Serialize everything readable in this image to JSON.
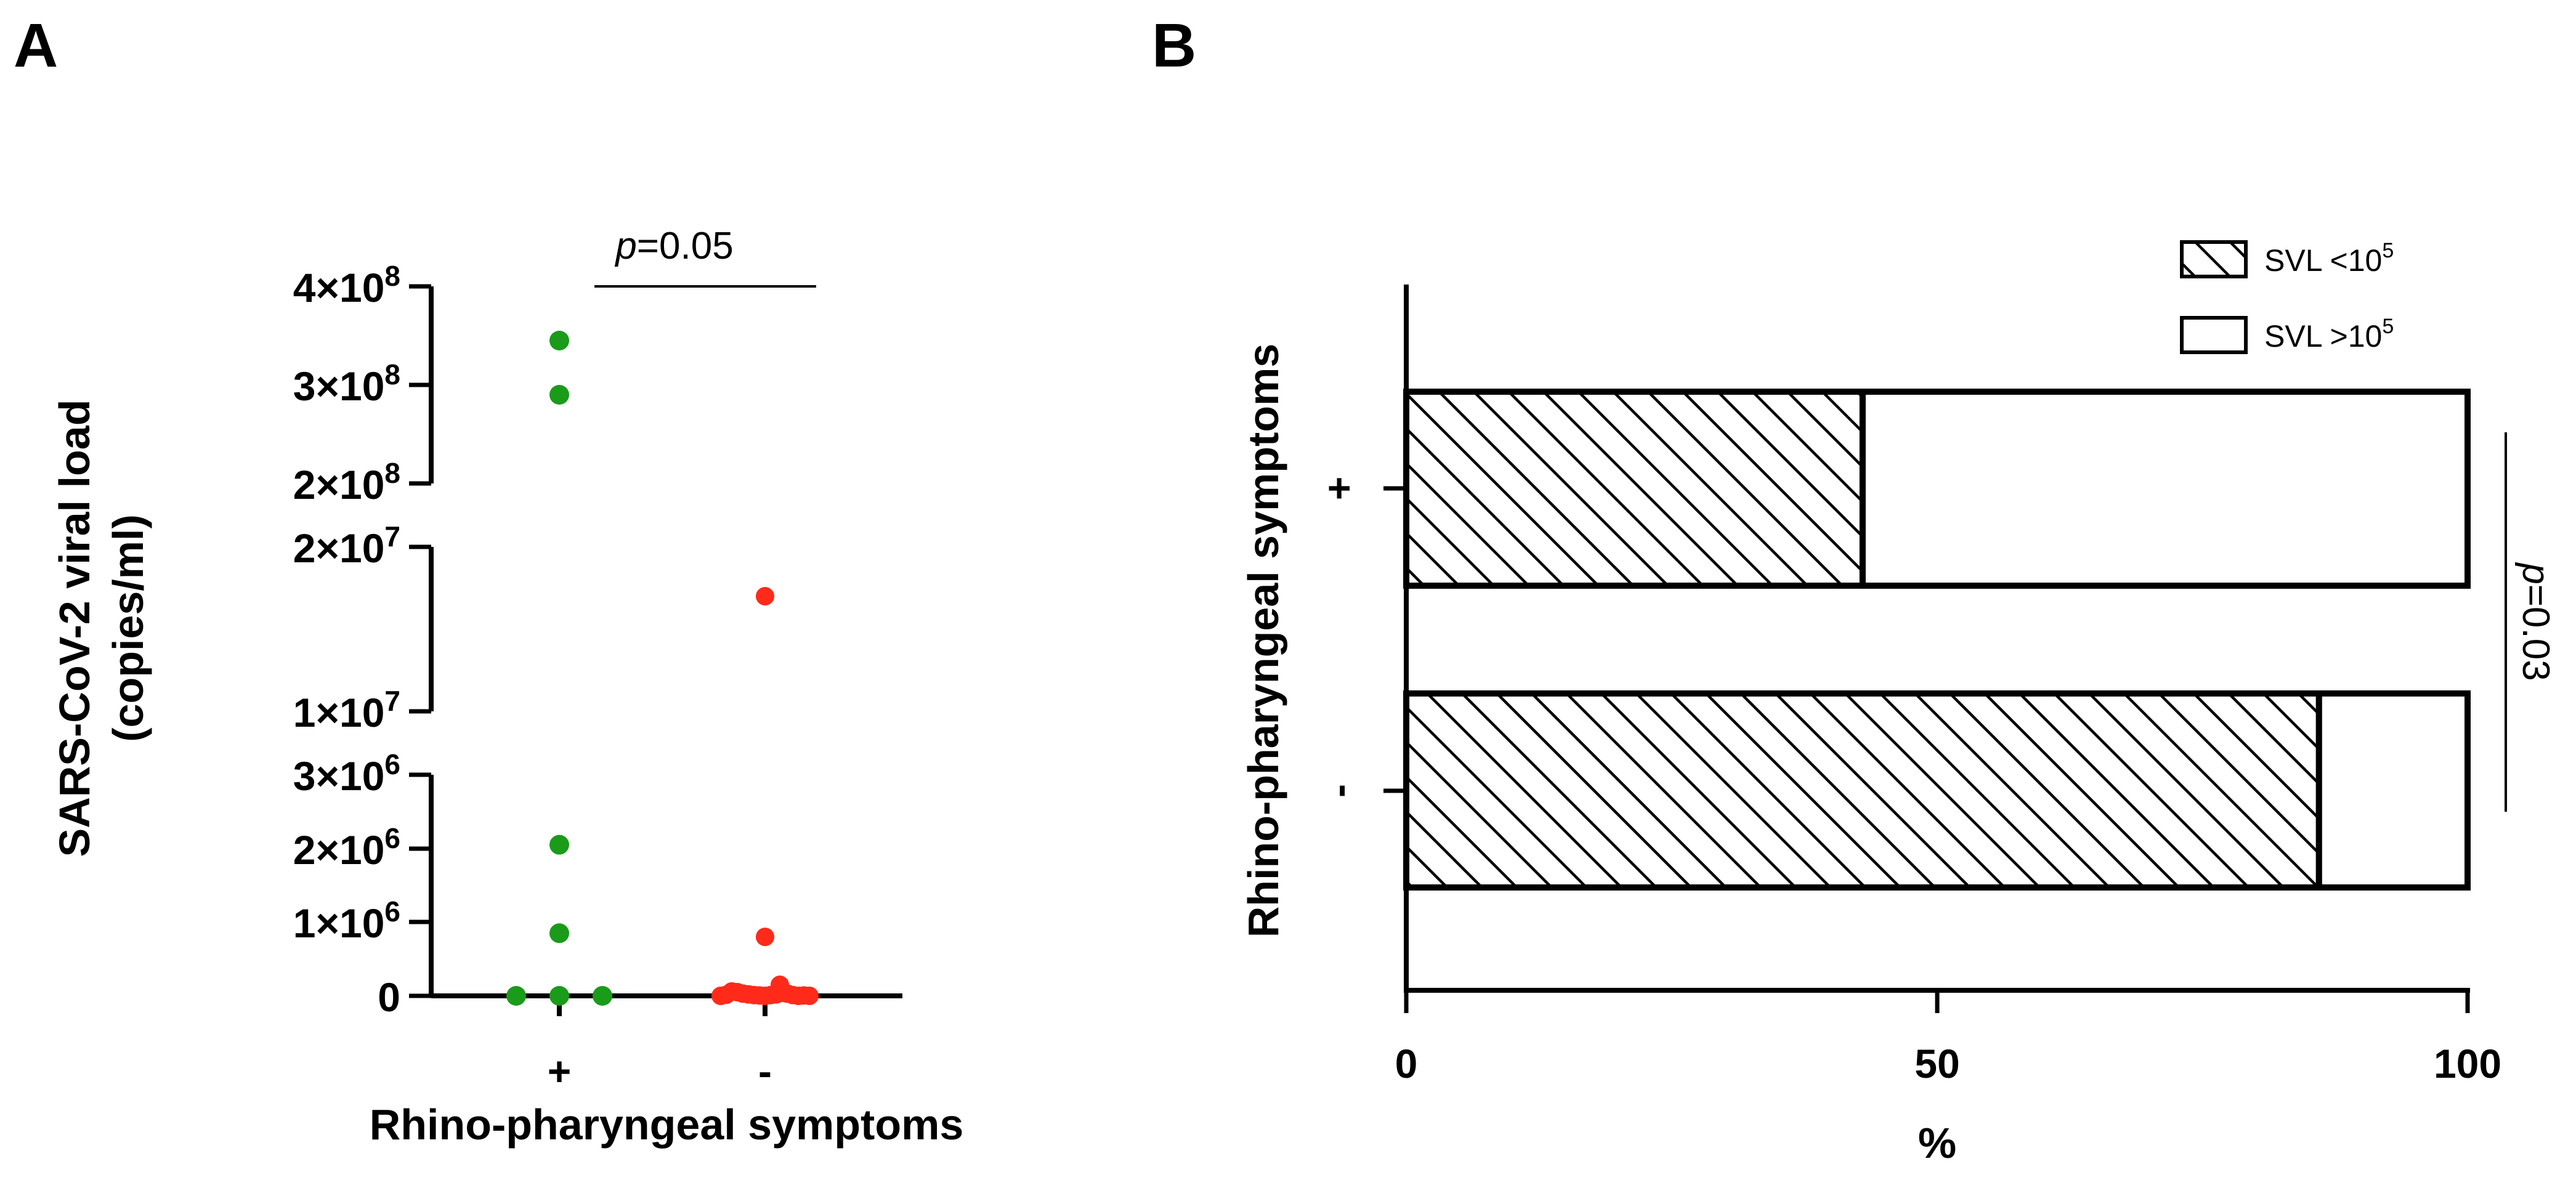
{
  "panel_labels": {
    "a": "A",
    "b": "B"
  },
  "chart_data": [
    {
      "panel": "A",
      "type": "scatter",
      "title": "",
      "ylabel_line1": "SARS-CoV-2 viral load",
      "ylabel_line2": "(copies/ml)",
      "xlabel": "Rhino-pharyngeal symptoms",
      "categories": [
        "+",
        "-"
      ],
      "y_axis": "broken (3 segments)",
      "y_segments": [
        {
          "range": [
            0,
            3000000
          ],
          "ticks": [
            {
              "value": 0,
              "label": "0"
            },
            {
              "value": 1000000,
              "label": "1×10",
              "exp": "6"
            },
            {
              "value": 2000000,
              "label": "2×10",
              "exp": "6"
            },
            {
              "value": 3000000,
              "label": "3×10",
              "exp": "6"
            }
          ]
        },
        {
          "range": [
            10000000,
            20000000
          ],
          "ticks": [
            {
              "value": 10000000,
              "label": "1×10",
              "exp": "7"
            },
            {
              "value": 20000000,
              "label": "2×10",
              "exp": "7"
            }
          ]
        },
        {
          "range": [
            200000000,
            400000000
          ],
          "ticks": [
            {
              "value": 200000000,
              "label": "2×10",
              "exp": "8"
            },
            {
              "value": 300000000,
              "label": "3×10",
              "exp": "8"
            },
            {
              "value": 400000000,
              "label": "4×10",
              "exp": "8"
            }
          ]
        }
      ],
      "series": [
        {
          "name": "+",
          "color": "#1a9b1a",
          "points": [
            {
              "y": 345000000,
              "jitter": 0
            },
            {
              "y": 290000000,
              "jitter": 0
            },
            {
              "y": 2050000,
              "jitter": 0
            },
            {
              "y": 850000,
              "jitter": 0
            },
            {
              "y": 0,
              "jitter": -1
            },
            {
              "y": 0,
              "jitter": 0
            },
            {
              "y": 0,
              "jitter": 1
            }
          ]
        },
        {
          "name": "-",
          "color": "#ff2a1a",
          "points": [
            {
              "y": 17000000,
              "jitter": 0
            },
            {
              "y": 800000,
              "jitter": 0
            },
            {
              "y": 150000,
              "jitter": 0.4
            },
            {
              "y": 60000,
              "jitter": -0.9
            },
            {
              "y": 50000,
              "jitter": -0.75
            },
            {
              "y": 30000,
              "jitter": -0.6
            },
            {
              "y": 20000,
              "jitter": -0.45
            },
            {
              "y": 10000,
              "jitter": -0.3
            },
            {
              "y": 5000,
              "jitter": -0.15
            },
            {
              "y": 0,
              "jitter": 0
            },
            {
              "y": 10000,
              "jitter": 0.15
            },
            {
              "y": 20000,
              "jitter": 0.3
            },
            {
              "y": 40000,
              "jitter": 0.5
            },
            {
              "y": 30000,
              "jitter": 0.6
            },
            {
              "y": 10000,
              "jitter": 0.75
            },
            {
              "y": 0,
              "jitter": 0.9
            },
            {
              "y": 5000,
              "jitter": 1.05
            },
            {
              "y": 15000,
              "jitter": -1.05
            },
            {
              "y": 0,
              "jitter": 1.2
            },
            {
              "y": 0,
              "jitter": -1.2
            }
          ]
        }
      ],
      "annotation": {
        "prefix": "p",
        "text": "=0.05"
      }
    },
    {
      "panel": "B",
      "type": "bar",
      "orientation": "horizontal stacked",
      "title": "",
      "xlabel": "%",
      "ylabel": "Rhino-pharyngeal symptoms",
      "xlim": [
        0,
        100
      ],
      "xticks": [
        "0",
        "50",
        "100"
      ],
      "categories": [
        "+",
        "-"
      ],
      "series": [
        {
          "name": "SVL <10",
          "name_exp": "5",
          "pattern": "hatched",
          "values": [
            43,
            86
          ]
        },
        {
          "name": "SVL >10",
          "name_exp": "5",
          "pattern": "empty",
          "values": [
            57,
            14
          ]
        }
      ],
      "legend_position": "top-right",
      "annotation": {
        "prefix": "p",
        "text": "=0.03"
      }
    }
  ]
}
